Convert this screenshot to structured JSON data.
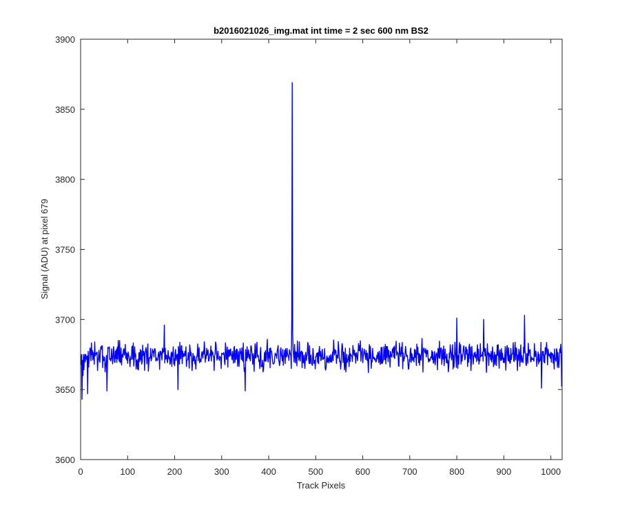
{
  "chart_data": {
    "type": "line",
    "title": "b2016021026_img.mat int time = 2 sec  600 nm BS2",
    "xlabel": "Track Pixels",
    "ylabel": "Signal (ADU) at pixel 679",
    "xlim": [
      0,
      1024
    ],
    "ylim": [
      3600,
      3900
    ],
    "xticks": [
      0,
      100,
      200,
      300,
      400,
      500,
      600,
      700,
      800,
      900,
      1000
    ],
    "yticks": [
      3600,
      3650,
      3700,
      3750,
      3800,
      3850,
      3900
    ],
    "grid": false,
    "series": [
      {
        "color": "#0000ff",
        "baseline_mean": 3674,
        "noise_amplitude": 9,
        "x_count": 1024,
        "anchor_points": [
          {
            "x": 1,
            "y": 3668
          },
          {
            "x": 3,
            "y": 3643
          },
          {
            "x": 5,
            "y": 3660
          },
          {
            "x": 6,
            "y": 3675
          },
          {
            "x": 15,
            "y": 3647
          },
          {
            "x": 30,
            "y": 3684
          },
          {
            "x": 56,
            "y": 3649
          },
          {
            "x": 178,
            "y": 3696
          },
          {
            "x": 207,
            "y": 3650
          },
          {
            "x": 350,
            "y": 3649
          },
          {
            "x": 449,
            "y": 3700
          },
          {
            "x": 450,
            "y": 3869
          },
          {
            "x": 451,
            "y": 3690
          },
          {
            "x": 800,
            "y": 3701
          },
          {
            "x": 857,
            "y": 3700
          },
          {
            "x": 944,
            "y": 3703
          },
          {
            "x": 980,
            "y": 3651
          },
          {
            "x": 1023,
            "y": 3652
          }
        ]
      }
    ]
  }
}
